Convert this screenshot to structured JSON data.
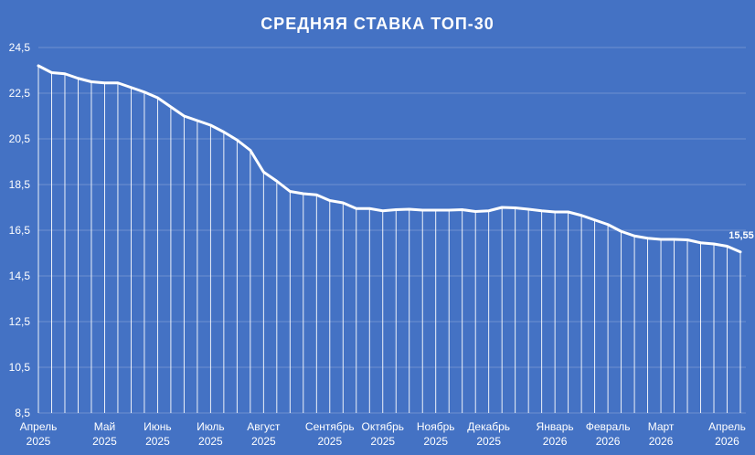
{
  "chart_data": {
    "type": "line",
    "title": "СРЕДНЯЯ СТАВКА ТОП-30",
    "xlabel": "",
    "ylabel": "",
    "ylim": [
      8.5,
      24.5
    ],
    "yticks": [
      "24,5",
      "22,5",
      "20,5",
      "18,5",
      "16,5",
      "14,5",
      "12,5",
      "10,5",
      "8,5"
    ],
    "ytick_values": [
      24.5,
      22.5,
      20.5,
      18.5,
      16.5,
      14.5,
      12.5,
      10.5,
      8.5
    ],
    "x_month_labels": [
      {
        "line1": "Апрель",
        "line2": "2025",
        "index": 0
      },
      {
        "line1": "Май",
        "line2": "2025",
        "index": 5
      },
      {
        "line1": "Июнь",
        "line2": "2025",
        "index": 9
      },
      {
        "line1": "Июль",
        "line2": "2025",
        "index": 13
      },
      {
        "line1": "Август",
        "line2": "2025",
        "index": 17
      },
      {
        "line1": "Сентябрь",
        "line2": "2025",
        "index": 22
      },
      {
        "line1": "Октябрь",
        "line2": "2025",
        "index": 26
      },
      {
        "line1": "Ноябрь",
        "line2": "2025",
        "index": 30
      },
      {
        "line1": "Декабрь",
        "line2": "2025",
        "index": 34
      },
      {
        "line1": "Январь",
        "line2": "2026",
        "index": 39
      },
      {
        "line1": "Февраль",
        "line2": "2026",
        "index": 43
      },
      {
        "line1": "Март",
        "line2": "2026",
        "index": 47
      },
      {
        "line1": "Апрель",
        "line2": "2026",
        "index": 52
      }
    ],
    "series": [
      {
        "values": [
          23.7,
          23.4,
          23.35,
          23.15,
          23.0,
          22.95,
          22.95,
          22.75,
          22.55,
          22.3,
          21.9,
          21.5,
          21.3,
          21.1,
          20.8,
          20.45,
          20.0,
          19.05,
          18.65,
          18.2,
          18.1,
          18.05,
          17.8,
          17.7,
          17.45,
          17.45,
          17.35,
          17.4,
          17.42,
          17.38,
          17.38,
          17.38,
          17.4,
          17.32,
          17.35,
          17.5,
          17.48,
          17.42,
          17.35,
          17.3,
          17.3,
          17.15,
          16.95,
          16.75,
          16.45,
          16.25,
          16.15,
          16.1,
          16.1,
          16.08,
          15.95,
          15.9,
          15.8,
          15.55
        ]
      }
    ],
    "data_labels": [
      {
        "index": 53,
        "text": "15,55"
      }
    ],
    "grid": true,
    "line_color": "#ffffff",
    "background": "#4472C4"
  }
}
